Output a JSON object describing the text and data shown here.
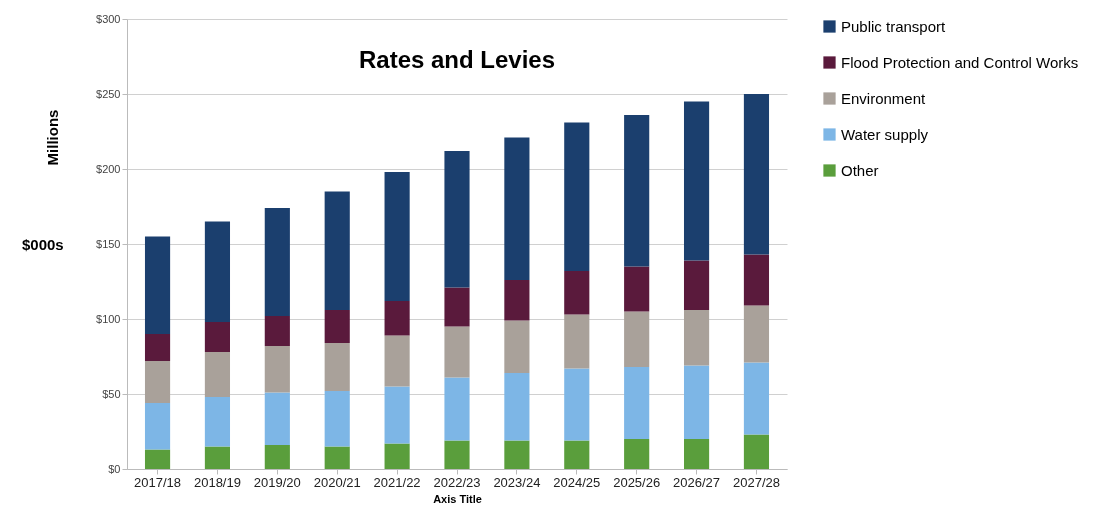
{
  "chart_data": {
    "type": "bar",
    "title": "Rates and Levies",
    "xlabel": "Axis Title",
    "ylabel": "Millions",
    "annotations": [
      "$000s"
    ],
    "categories": [
      "2017/18",
      "2018/19",
      "2019/20",
      "2020/21",
      "2021/22",
      "2022/23",
      "2023/24",
      "2024/25",
      "2025/26",
      "2026/27",
      "2027/28"
    ],
    "stacked": true,
    "series": [
      {
        "name": "Other",
        "color": "#5a9e3c",
        "values": [
          13,
          15,
          16,
          15,
          17,
          19,
          19,
          19,
          20,
          20,
          23
        ]
      },
      {
        "name": "Water supply",
        "color": "#7db6e6",
        "values": [
          31,
          33,
          35,
          37,
          38,
          42,
          45,
          48,
          48,
          49,
          48
        ]
      },
      {
        "name": "Environment",
        "color": "#a9a19a",
        "values": [
          28,
          30,
          31,
          32,
          34,
          34,
          35,
          36,
          37,
          37,
          38
        ]
      },
      {
        "name": "Flood Protection and Control Works",
        "color": "#5a1a3c",
        "values": [
          18,
          20,
          20,
          22,
          23,
          26,
          27,
          29,
          30,
          33,
          34
        ]
      },
      {
        "name": "Public transport",
        "color": "#1b3f6e",
        "values": [
          65,
          67,
          72,
          79,
          86,
          91,
          95,
          99,
          101,
          106,
          107
        ]
      }
    ],
    "ylim": [
      0,
      300
    ],
    "yticks": [
      {
        "value": 0,
        "label": "$0"
      },
      {
        "value": 50,
        "label": "$50"
      },
      {
        "value": 100,
        "label": "$100"
      },
      {
        "value": 150,
        "label": "$150"
      },
      {
        "value": 200,
        "label": "$200"
      },
      {
        "value": 250,
        "label": "$250"
      },
      {
        "value": 300,
        "label": "$300"
      }
    ],
    "grid": "y",
    "legend": "right"
  }
}
